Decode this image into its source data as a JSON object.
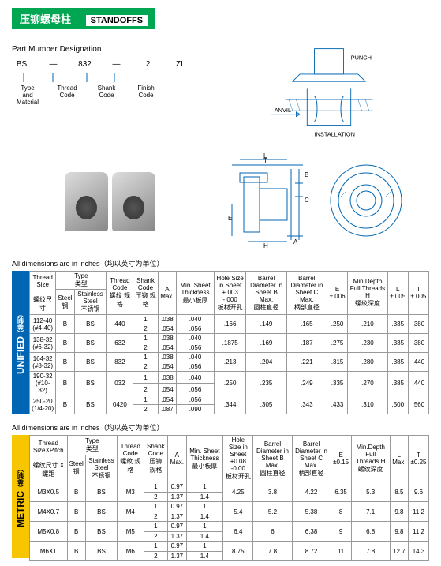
{
  "header": {
    "cn": "压铆螺母柱",
    "en": "STANDOFFS"
  },
  "designation": {
    "title": "Part Mumber Designation",
    "parts": [
      "BS",
      "—",
      "832",
      "—",
      "2",
      "ZI"
    ],
    "labels": [
      {
        "l1": "Type",
        "l2": "and",
        "l3": "Matcrial"
      },
      {
        "l1": "Thread",
        "l2": "Code",
        "l3": ""
      },
      {
        "l1": "Shank",
        "l2": "Code",
        "l3": ""
      },
      {
        "l1": "Finish",
        "l2": "Code",
        "l3": ""
      }
    ]
  },
  "install": {
    "punch": "PUNCH",
    "anvil": "ANVIL",
    "title": "INSTALLATION"
  },
  "dimnote": "All dimensions are in inches（均以英寸为单位）",
  "unified": {
    "side": "UNIFIED",
    "side_cn": "（美制）",
    "headers": {
      "thread": "Thread\nSize",
      "thread_cn": "螺纹尺寸",
      "type": "Type",
      "type_cn": "类型",
      "steel": "Steel",
      "steel_cn": "钢",
      "ss": "Stainless\nSteel",
      "ss_cn": "不锈钢",
      "tc": "Thread\nCode",
      "tc_cn": "螺纹\n规格",
      "sc": "Shank\nCode",
      "sc_cn": "压铆\n规格",
      "a": "A\nMax.",
      "min": "Min.\nSheet\nThickness",
      "min_cn": "最小板厚",
      "hole": "Hole Size\nin Sheet\n+.003\n-.000",
      "hole_cn": "板材开孔",
      "bd_b": "Barrel\nDiameter\nin Sheet\nB\nMax.",
      "bd_b_cn": "圆柱直径",
      "bd_c": "Barrel\nDiameter\nin Sheet\nC\nMax.",
      "bd_c_cn": "柄部直径",
      "e": "E\n±.006",
      "md": "Min.Depth\nFull\nThreads\nH",
      "md_cn": "螺纹深度",
      "l": "L\n±.005",
      "t": "T\n±.005"
    },
    "rows": [
      {
        "thread": "112-40\n(#4-40)",
        "st": "B",
        "ss": "BS",
        "tc": "440",
        "sc": [
          "1",
          "2"
        ],
        "a": [
          ".038",
          ".054"
        ],
        "min": [
          ".040",
          ".056"
        ],
        "hole": ".166",
        "bdb": ".149",
        "bdc": ".165",
        "e": ".250",
        "md": ".210",
        "l": ".335",
        "t": ".380"
      },
      {
        "thread": "138-32\n(#6-32)",
        "st": "B",
        "ss": "BS",
        "tc": "632",
        "sc": [
          "1",
          "2"
        ],
        "a": [
          ".038",
          ".054"
        ],
        "min": [
          ".040",
          ".056"
        ],
        "hole": ".1875",
        "bdb": ".169",
        "bdc": ".187",
        "e": ".275",
        "md": ".230",
        "l": ".335",
        "t": ".380"
      },
      {
        "thread": "164-32\n(#8-32)",
        "st": "B",
        "ss": "BS",
        "tc": "832",
        "sc": [
          "1",
          "2"
        ],
        "a": [
          ".038",
          ".054"
        ],
        "min": [
          ".040",
          ".056"
        ],
        "hole": ".213",
        "bdb": ".204",
        "bdc": ".221",
        "e": ".315",
        "md": ".280",
        "l": ".385",
        "t": ".440"
      },
      {
        "thread": "190-32\n(#10-32)",
        "st": "B",
        "ss": "BS",
        "tc": "032",
        "sc": [
          "1",
          "2"
        ],
        "a": [
          ".038",
          ".054"
        ],
        "min": [
          ".040",
          ".056"
        ],
        "hole": ".250",
        "bdb": ".235",
        "bdc": ".249",
        "e": ".335",
        "md": ".270",
        "l": ".385",
        "t": ".440"
      },
      {
        "thread": "250-20\n(1/4-20)",
        "st": "B",
        "ss": "BS",
        "tc": "0420",
        "sc": [
          "1",
          "2"
        ],
        "a": [
          ".054",
          ".087"
        ],
        "min": [
          ".056",
          ".090"
        ],
        "hole": ".344",
        "bdb": ".305",
        "bdc": ".343",
        "e": ".433",
        "md": ".310",
        "l": ".500",
        "t": ".560"
      }
    ]
  },
  "metric": {
    "side": "METRIC",
    "side_cn": "（美制）",
    "headers": {
      "thread": "Thread\nSizeXPitch",
      "thread_cn": "螺纹尺寸\nX螺距",
      "hole": "Hole Size\nin Sheet\n+0.08\n-0.00",
      "e": "E\n±0.15",
      "l": "L\nMax.",
      "t": "T\n±0.25"
    },
    "rows": [
      {
        "thread": "M3X0.5",
        "st": "B",
        "ss": "BS",
        "tc": "M3",
        "sc": [
          "1",
          "2"
        ],
        "a": [
          "0.97",
          "1.37"
        ],
        "min": [
          "1",
          "1.4"
        ],
        "hole": "4.25",
        "bdb": "3.8",
        "bdc": "4.22",
        "e": "6.35",
        "md": "5.3",
        "l": "8.5",
        "t": "9.6"
      },
      {
        "thread": "M4X0.7",
        "st": "B",
        "ss": "BS",
        "tc": "M4",
        "sc": [
          "1",
          "2"
        ],
        "a": [
          "0.97",
          "1.37"
        ],
        "min": [
          "1",
          "1.4"
        ],
        "hole": "5.4",
        "bdb": "5.2",
        "bdc": "5.38",
        "e": "8",
        "md": "7.1",
        "l": "9.8",
        "t": "11.2"
      },
      {
        "thread": "M5X0.8",
        "st": "B",
        "ss": "BS",
        "tc": "M5",
        "sc": [
          "1",
          "2"
        ],
        "a": [
          "0.97",
          "1.37"
        ],
        "min": [
          "1",
          "1.4"
        ],
        "hole": "6.4",
        "bdb": "6",
        "bdc": "6.38",
        "e": "9",
        "md": "6.8",
        "l": "9.8",
        "t": "11.2"
      },
      {
        "thread": "M6X1",
        "st": "B",
        "ss": "BS",
        "tc": "M6",
        "sc": [
          "1",
          "2"
        ],
        "a": [
          "0.97",
          "1.37"
        ],
        "min": [
          "1",
          "1.4"
        ],
        "hole": "8.75",
        "bdb": "7.8",
        "bdc": "8.72",
        "e": "11",
        "md": "7.8",
        "l": "12.7",
        "t": "14.3"
      }
    ]
  }
}
